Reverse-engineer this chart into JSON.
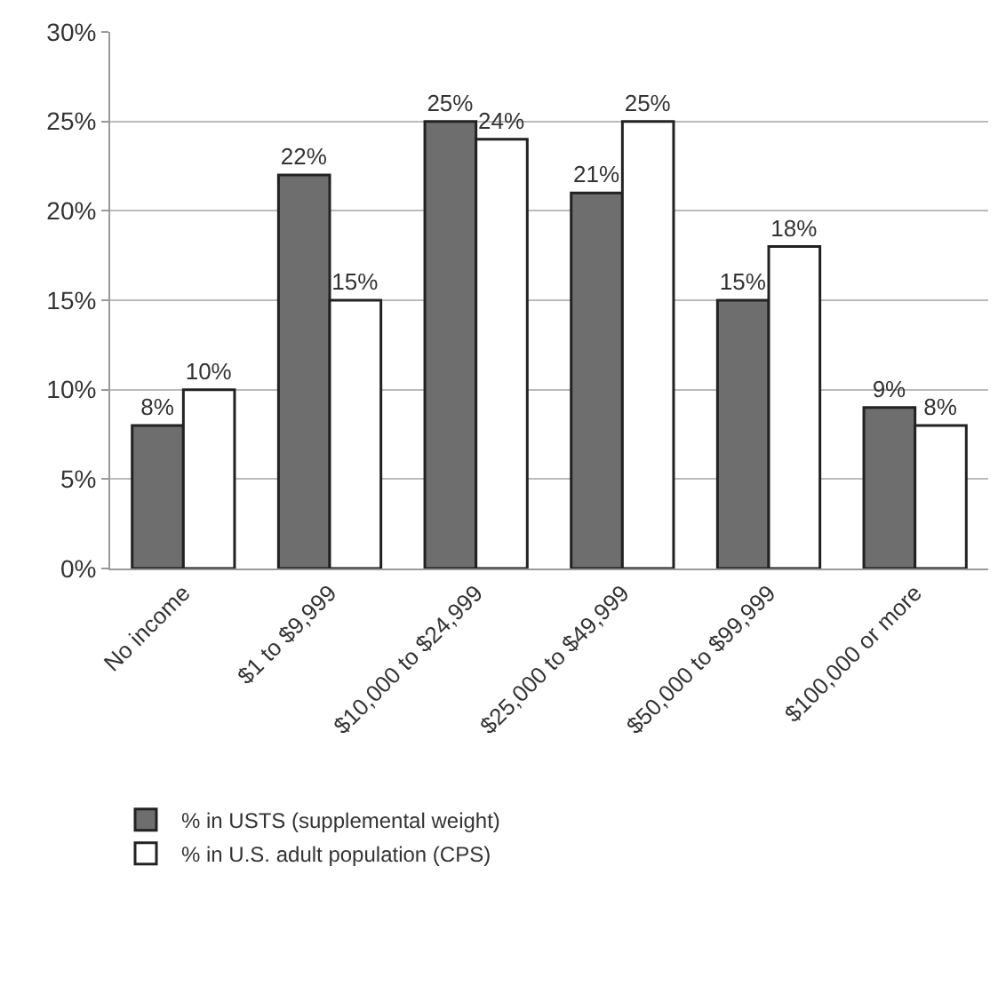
{
  "chart_data": {
    "type": "bar",
    "categories": [
      "No income",
      "$1 to $9,999",
      "$10,000 to $24,999",
      "$25,000 to $49,999",
      "$50,000 to $99,999",
      "$100,000 or more"
    ],
    "series": [
      {
        "name": "% in USTS (supplemental weight)",
        "color": "#6e6e6e",
        "values": [
          8,
          22,
          25,
          21,
          15,
          9
        ],
        "value_labels": [
          "8%",
          "22%",
          "25%",
          "21%",
          "15%",
          "9%"
        ]
      },
      {
        "name": "% in U.S. adult population (CPS)",
        "color": "#ffffff",
        "values": [
          10,
          15,
          24,
          25,
          18,
          8
        ],
        "value_labels": [
          "10%",
          "15%",
          "24%",
          "25%",
          "18%",
          "8%"
        ]
      }
    ],
    "ylim": [
      0,
      30
    ],
    "yticks": [
      {
        "value": 0,
        "label": "0%"
      },
      {
        "value": 5,
        "label": "5%"
      },
      {
        "value": 10,
        "label": "10%"
      },
      {
        "value": 15,
        "label": "15%"
      },
      {
        "value": 20,
        "label": "20%"
      },
      {
        "value": 25,
        "label": "25%"
      },
      {
        "value": 30,
        "label": "30%"
      }
    ],
    "grid": "y",
    "legend": "bottom left"
  }
}
